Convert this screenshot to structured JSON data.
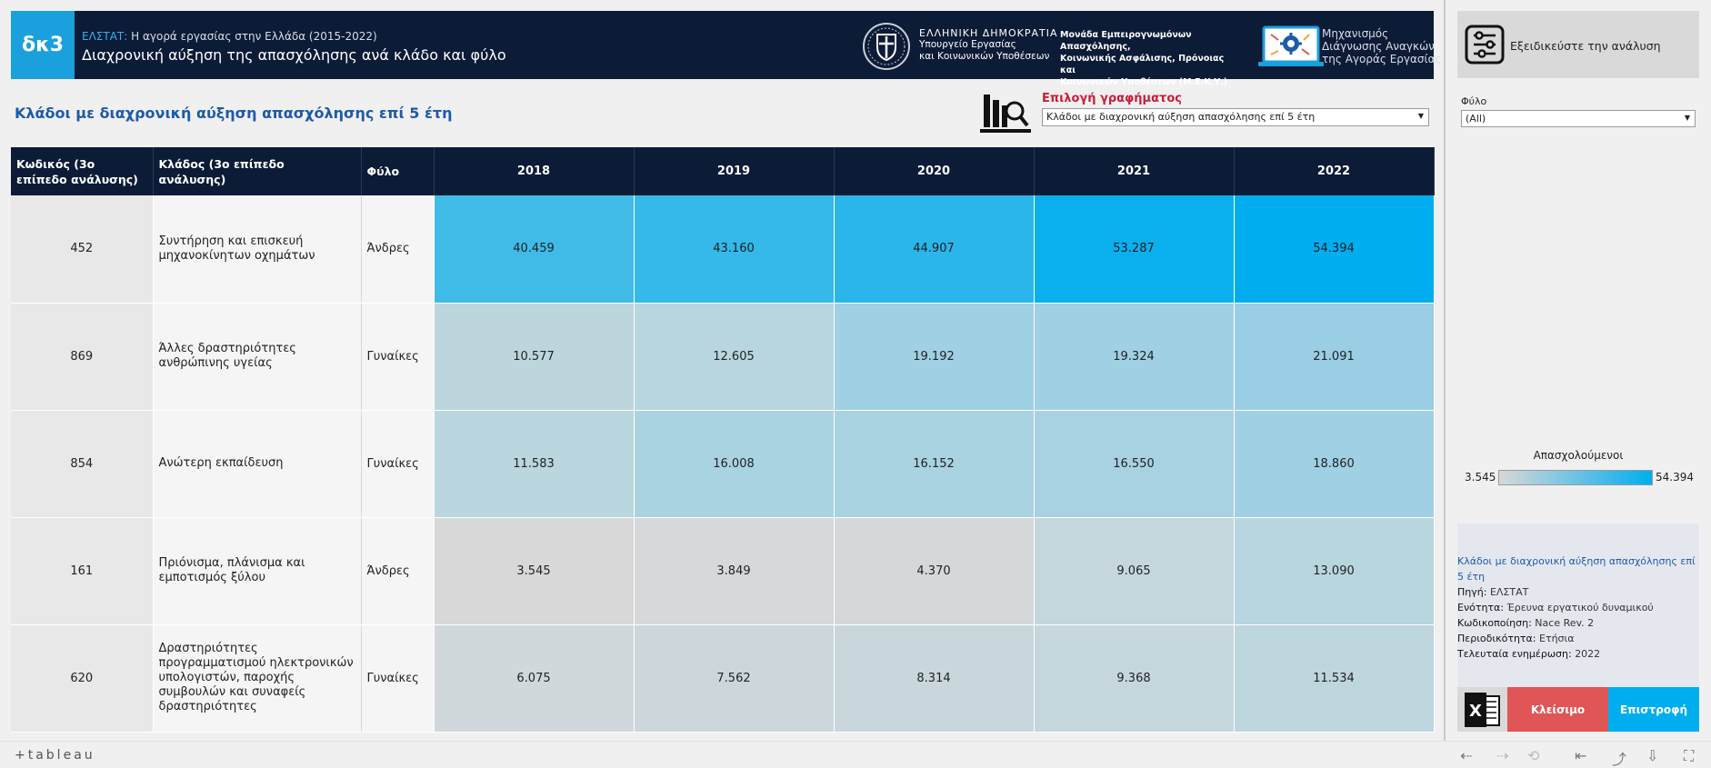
{
  "header": {
    "badge": "δκ3",
    "source_prefix": "ΕΛΣΤΑΤ:",
    "subtitle": "Η αγορά εργασίας στην Ελλάδα (2015-2022)",
    "title": "Διαχρονική αύξηση της απασχόλησης ανά κλάδο και φύλο",
    "gov_line1": "ΕΛΛΗΝΙΚΗ ΔΗΜΟΚΡΑΤΙΑ",
    "gov_line2": "Υπουργείο Εργασίας",
    "gov_line3": "και Κοινωνικών Υποθέσεων",
    "meky_line1": "Μονάδα Εμπειρογνωμόνων Απασχόλησης,",
    "meky_line2": "Κοινωνικής Ασφάλισης, Πρόνοιας και",
    "meky_line3": "Κοινωνικών Υποθέσεων (Μ.Ε.Κ.Υ.)",
    "mech_line1": "Μηχανισμός",
    "mech_line2": "Διάγνωσης Αναγκών",
    "mech_line3": "της Αγοράς Εργασίας"
  },
  "section": {
    "title": "Κλάδοι με διαχρονική αύξηση απασχόλησης επί 5 έτη",
    "selector_label": "Επιλογή γραφήματος",
    "selector_value": "Κλάδοι με διαχρονική αύξηση απασχόλησης επί 5 έτη"
  },
  "table": {
    "headers": {
      "code": "Κωδικός (3ο επίπεδο ανάλυσης)",
      "branch": "Κλάδος (3ο επίπεδο ανάλυσης)",
      "gender": "Φύλο",
      "years": [
        "2018",
        "2019",
        "2020",
        "2021",
        "2022"
      ]
    },
    "rows": [
      {
        "code": "452",
        "branch": "Συντήρηση και επισκευή μηχανοκίνητων οχημάτων",
        "gender": "Άνδρες",
        "values": [
          "40.459",
          "43.160",
          "44.907",
          "53.287",
          "54.394"
        ],
        "colors": [
          "#40bbe8",
          "#35b8ea",
          "#2bb6eb",
          "#0aafee",
          "#00aeef"
        ]
      },
      {
        "code": "869",
        "branch": "Άλλες δραστηριότητες ανθρώπινης υγείας",
        "gender": "Γυναίκες",
        "values": [
          "10.577",
          "12.605",
          "19.192",
          "19.324",
          "21.091"
        ],
        "colors": [
          "#bdd6de",
          "#b8d6e0",
          "#a0d0e3",
          "#a0d0e3",
          "#99cee4"
        ]
      },
      {
        "code": "854",
        "branch": "Ανώτερη εκπαίδευση",
        "gender": "Γυναίκες",
        "values": [
          "11.583",
          "16.008",
          "16.152",
          "16.550",
          "18.860"
        ],
        "colors": [
          "#bad6df",
          "#aad3e2",
          "#aad3e2",
          "#a8d2e2",
          "#a0d0e3"
        ]
      },
      {
        "code": "161",
        "branch": "Πριόνισμα, πλάνισμα και εμποτισμός ξύλου",
        "gender": "Άνδρες",
        "values": [
          "3.545",
          "3.849",
          "4.370",
          "9.065",
          "13.090"
        ],
        "colors": [
          "#d8d8d8",
          "#d6d8d9",
          "#d4d8da",
          "#c5d7dd",
          "#b7d6df"
        ]
      },
      {
        "code": "620",
        "branch": "Δραστηριότητες προγραμματισμού ηλεκτρονικών υπολογιστών, παροχής συμβουλών και συναφείς δραστηριότητες",
        "gender": "Γυναίκες",
        "values": [
          "6.075",
          "7.562",
          "8.314",
          "9.368",
          "11.534"
        ],
        "colors": [
          "#d0d8db",
          "#ccd7dc",
          "#c9d7dc",
          "#c5d7dd",
          "#bed6de"
        ]
      }
    ]
  },
  "right_panel": {
    "refine_label": "Εξειδικεύστε την ανάλυση",
    "filter_label": "Φύλο",
    "filter_value": "(All)",
    "legend_title": "Απασχολούμενοι",
    "legend_min": "3.545",
    "legend_max": "54.394",
    "info_title": "Κλάδοι με διαχρονική αύξηση απασχόλησης επί 5 έτη",
    "info_rows": [
      {
        "k": "Πηγή:",
        "v": "ΕΛΣΤΑΤ"
      },
      {
        "k": "Ενότητα:",
        "v": "Έρευνα εργατικού δυναμικού"
      },
      {
        "k": "Κωδικοποίηση:",
        "v": "Nace Rev. 2"
      },
      {
        "k": "Περιοδικότητα:",
        "v": "Ετήσια"
      },
      {
        "k": "Τελευταία ενημέρωση:",
        "v": "2022"
      }
    ],
    "close_label": "Κλείσιμο",
    "back_label": "Επιστροφή"
  },
  "footer": {
    "logo": "+tableau"
  }
}
